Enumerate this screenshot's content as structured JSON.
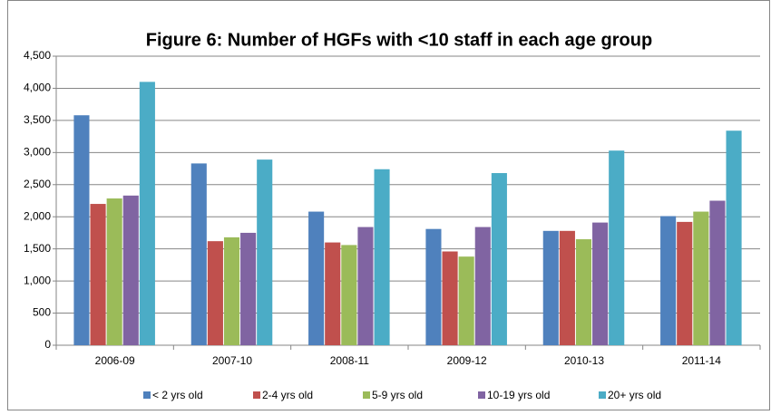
{
  "chart_data": {
    "type": "bar",
    "title": "Figure 6: Number of HGFs with <10 staff in each age group",
    "categories": [
      "2006-09",
      "2007-10",
      "2008-11",
      "2009-12",
      "2010-13",
      "2011-14"
    ],
    "series": [
      {
        "name": "< 2 yrs old",
        "color": "#4f81bd",
        "values": [
          3580,
          2830,
          2080,
          1810,
          1780,
          2010
        ]
      },
      {
        "name": "2-4 yrs old",
        "color": "#c0504d",
        "values": [
          2200,
          1620,
          1600,
          1460,
          1780,
          1920
        ]
      },
      {
        "name": "5-9 yrs old",
        "color": "#9bbb59",
        "values": [
          2285,
          1680,
          1560,
          1380,
          1650,
          2080
        ]
      },
      {
        "name": "10-19 yrs old",
        "color": "#8064a2",
        "values": [
          2330,
          1750,
          1840,
          1840,
          1910,
          2250
        ]
      },
      {
        "name": "20+ yrs old",
        "color": "#4bacc6",
        "values": [
          4100,
          2890,
          2740,
          2680,
          3030,
          3340
        ]
      }
    ],
    "ylim": [
      0,
      4500
    ],
    "yticks": [
      0,
      500,
      {
        "value": 1000,
        "label": "1,000"
      },
      {
        "value": 1500,
        "label": "1,500"
      },
      {
        "value": 2000,
        "label": "2,000"
      },
      {
        "value": 2500,
        "label": "2,500"
      },
      {
        "value": 3000,
        "label": "3,000"
      },
      {
        "value": 3500,
        "label": "3,500"
      },
      {
        "value": 4000,
        "label": "4,000"
      },
      {
        "value": 4500,
        "label": "4,500"
      }
    ],
    "grid": true,
    "legend": "bottom"
  }
}
